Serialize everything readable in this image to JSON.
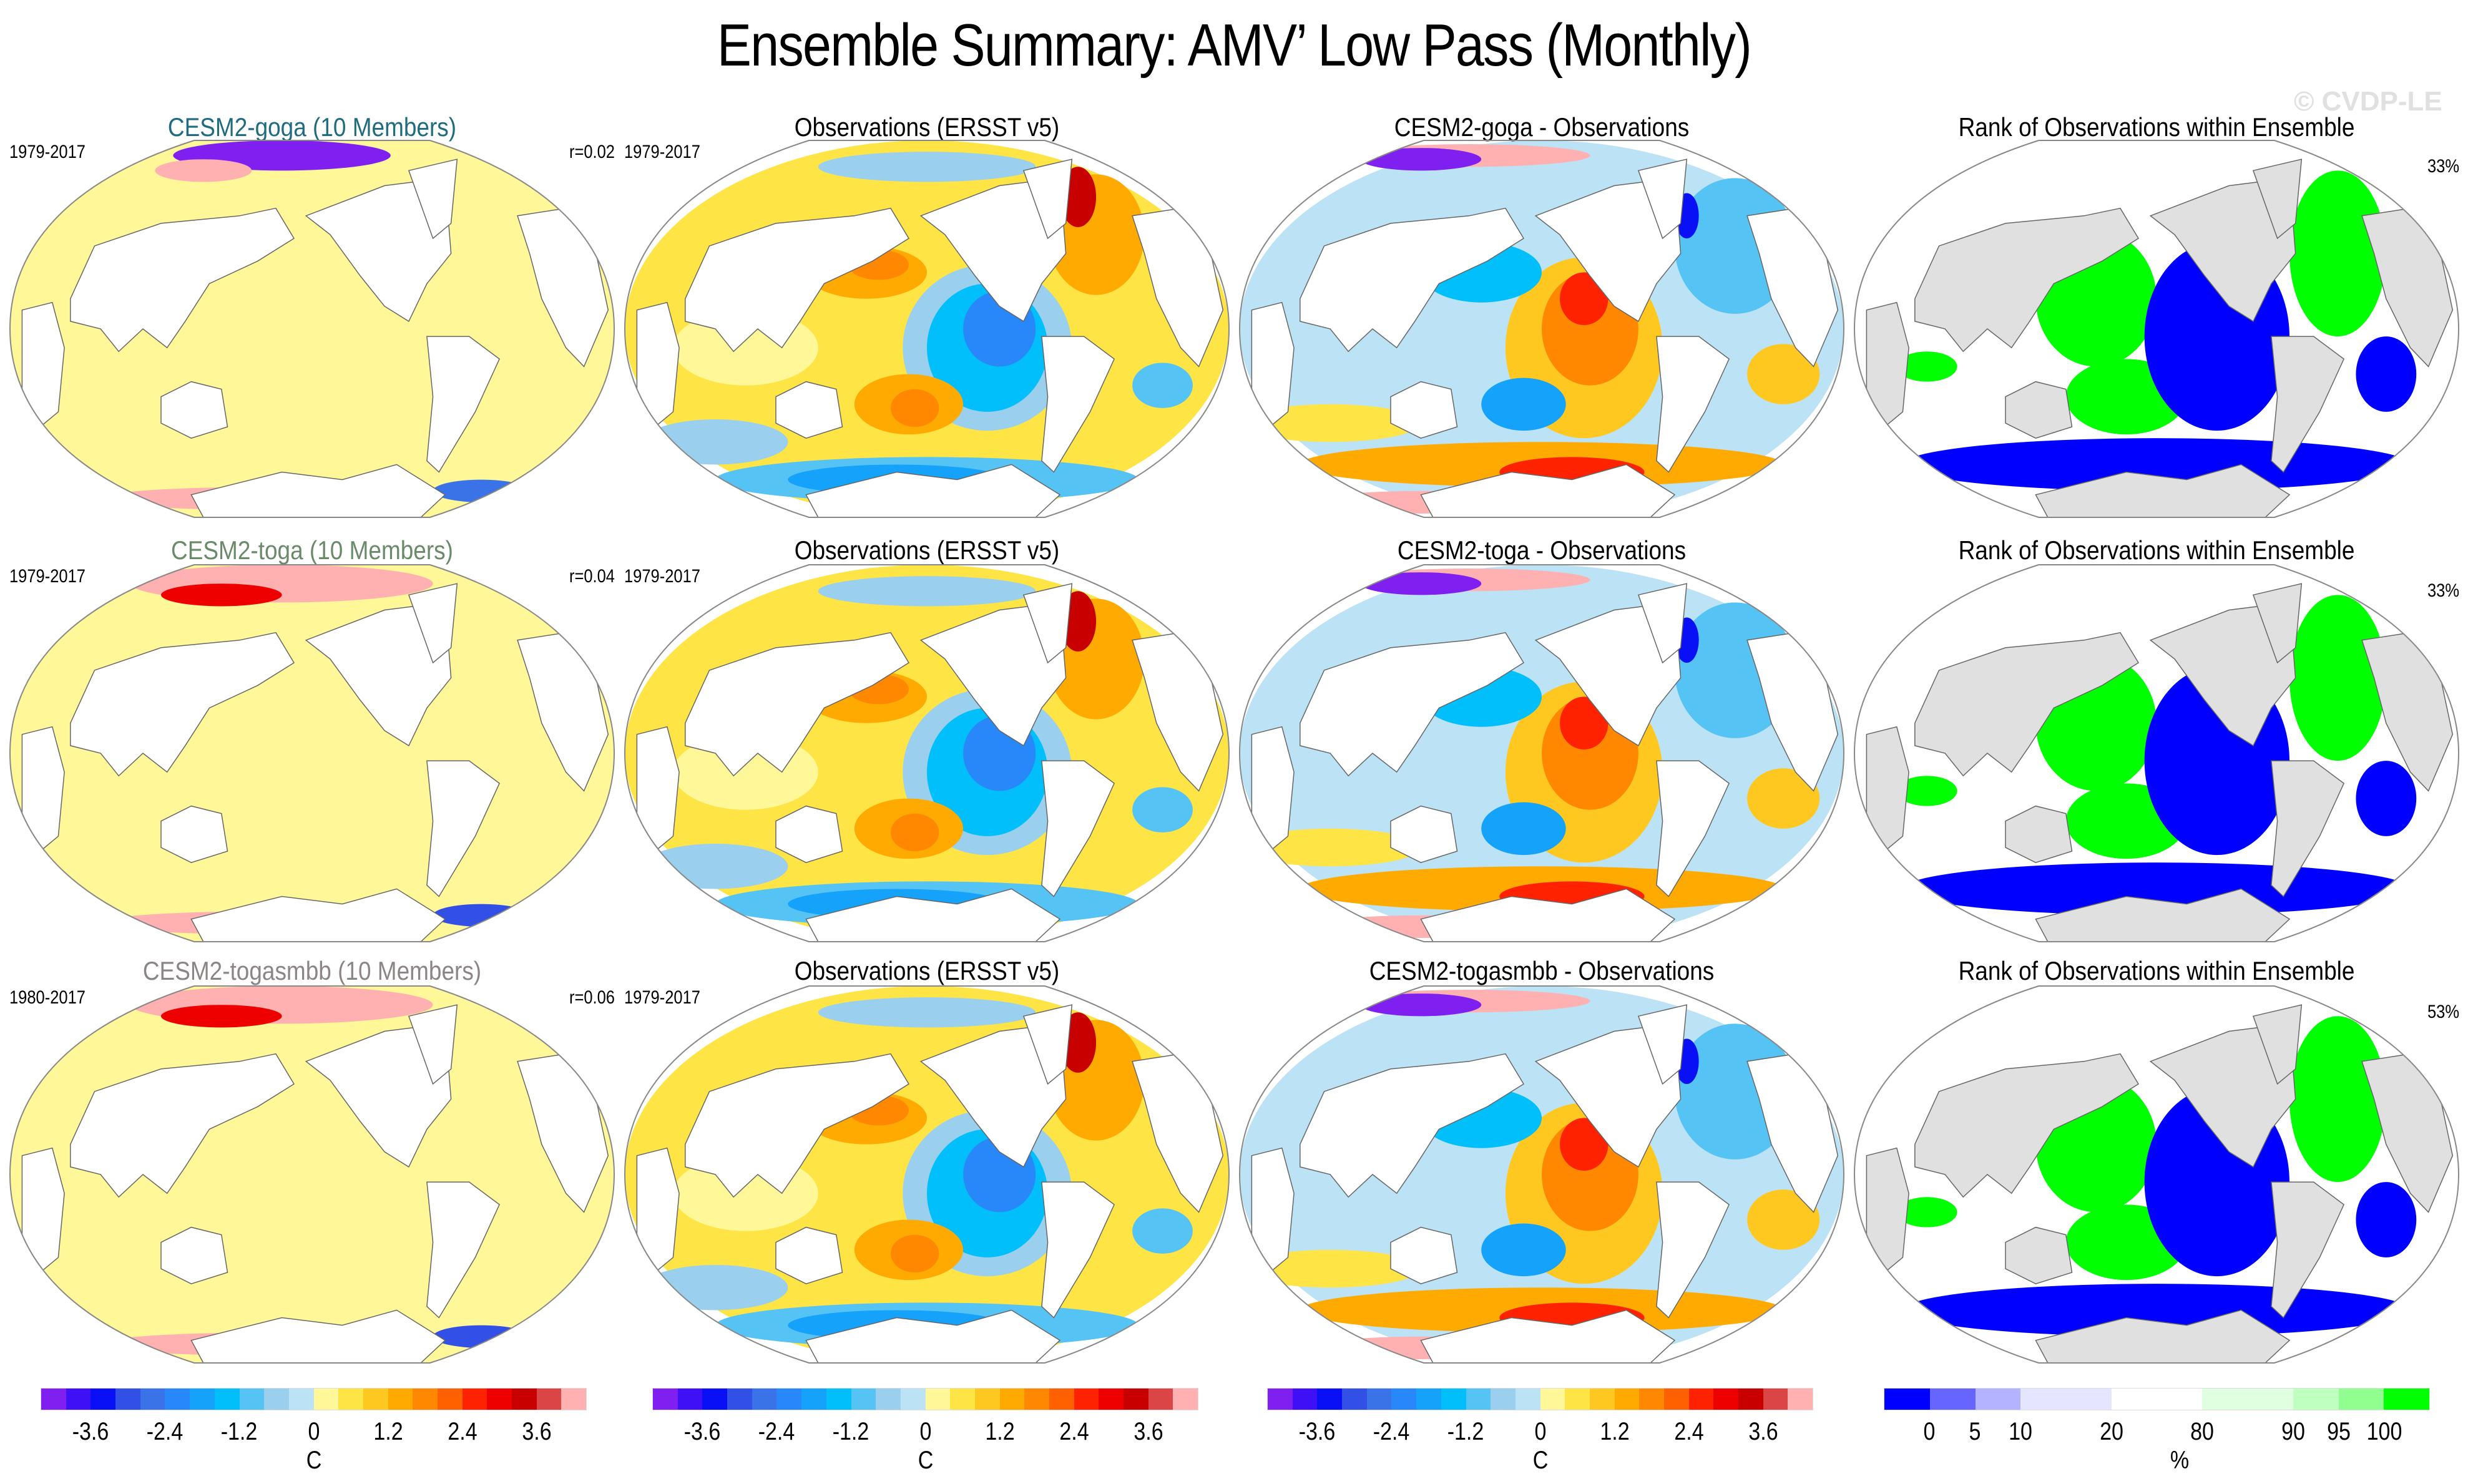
{
  "title": "Ensemble Summary: AMV’ Low Pass (Monthly)",
  "watermark": "© CVDP-LE",
  "chart_data": {
    "type": "heatmap",
    "projection": "Robinson (global map, Pacific-centered)",
    "grid": "3 rows x 4 columns of map panels",
    "rows": [
      {
        "panels": [
          {
            "kind": "model",
            "title": "CESM2-goga (10 Members)",
            "title_color": "#1f6b80",
            "years": "1979-2017",
            "stat": "r=0.02",
            "pattern": "near-zero (pale yellow) over most oceans; strong mixed anomalies in Arctic and Southern Ocean sea-ice zones"
          },
          {
            "kind": "observations",
            "title": "Observations (ERSST v5)",
            "years": "1979-2017",
            "pattern": "positive North Atlantic (up to ~3.6 C near Greenland), positive NW & SW Pacific horseshoe, negative eastern tropical Pacific and Southern Ocean"
          },
          {
            "kind": "difference",
            "title": "CESM2-goga - Observations",
            "pattern": "inverse of observations: positive eastern Pacific wedge, negative NW/SW Pacific and North Atlantic; mixed high-latitude"
          },
          {
            "kind": "rank",
            "title": "Rank of Observations within Ensemble",
            "stat": "33%",
            "pattern": "0-5% rank (blue) in eastern Pacific and Southern Ocean; 95-100% rank (green) in NW/SW Pacific and North Atlantic"
          }
        ]
      },
      {
        "panels": [
          {
            "kind": "model",
            "title": "CESM2-toga (10 Members)",
            "title_color": "#6a8a6a",
            "years": "1979-2017",
            "stat": "r=0.04",
            "pattern": "near-zero over most oceans; strong positive Arctic anomalies; mixed Southern Ocean"
          },
          {
            "kind": "observations",
            "title": "Observations (ERSST v5)",
            "years": "1979-2017",
            "pattern": "same observed AMV pattern"
          },
          {
            "kind": "difference",
            "title": "CESM2-toga - Observations",
            "pattern": "inverse of observations with positive Arctic"
          },
          {
            "kind": "rank",
            "title": "Rank of Observations within Ensemble",
            "stat": "33%",
            "pattern": "blue eastern Pacific and Southern Ocean; green NW/SW Pacific, Indian Ocean and North Atlantic"
          }
        ]
      },
      {
        "panels": [
          {
            "kind": "model",
            "title": "CESM2-togasmbb (10 Members)",
            "title_color": "#8c8585",
            "years": "1980-2017",
            "stat": "r=0.06",
            "pattern": "near-zero over most oceans; strong positive Arctic, mixed Southern Ocean"
          },
          {
            "kind": "observations",
            "title": "Observations (ERSST v5)",
            "years": "1979-2017",
            "pattern": "same observed AMV pattern"
          },
          {
            "kind": "difference",
            "title": "CESM2-togasmbb - Observations",
            "pattern": "inverse of observations with positive Arctic"
          },
          {
            "kind": "rank",
            "title": "Rank of Observations within Ensemble",
            "stat": "53%",
            "pattern": "blue eastern Pacific and Southern Ocean; green NW/SW Pacific and North Atlantic"
          }
        ]
      }
    ],
    "colorbars": [
      {
        "for": "columns 1-3 (SST anomaly)",
        "units": "C",
        "tick_labels": [
          "-3.6",
          "-2.4",
          "-1.2",
          "0",
          "1.2",
          "2.4",
          "3.6"
        ],
        "tick_values": [
          -3.6,
          -2.4,
          -1.2,
          0,
          1.2,
          2.4,
          3.6
        ],
        "levels": [
          -4.0,
          -3.6,
          -3.2,
          -2.8,
          -2.4,
          -2.0,
          -1.6,
          -1.2,
          -0.8,
          -0.4,
          0,
          0.4,
          0.8,
          1.2,
          1.6,
          2.0,
          2.4,
          2.8,
          3.2,
          3.6,
          4.0
        ],
        "colors": [
          "#8020f0",
          "#3f10f5",
          "#0a10f5",
          "#3250e5",
          "#3a72e8",
          "#2888fa",
          "#14a2fa",
          "#00bffa",
          "#56c3f5",
          "#9ad0ee",
          "#bce2f5",
          "#fff798",
          "#ffe445",
          "#ffc820",
          "#ffaa00",
          "#ff8800",
          "#ff6000",
          "#ff2200",
          "#ee0000",
          "#c80000",
          "#dc4545",
          "#ffb0b0"
        ]
      },
      {
        "for": "column 4 (rank)",
        "units": "%",
        "tick_labels": [
          "0",
          "5",
          "10",
          "20",
          "80",
          "90",
          "95",
          "100"
        ],
        "tick_values": [
          0,
          5,
          10,
          20,
          80,
          90,
          95,
          100
        ],
        "colors": [
          "#0000ff",
          "#6666ff",
          "#b3b3ff",
          "#e5e5ff",
          "#ffffff",
          "#e0ffe0",
          "#bfffbf",
          "#90ff90",
          "#00ff00"
        ],
        "box_widths": [
          1,
          1,
          1,
          2,
          2,
          2,
          1,
          1,
          1
        ]
      }
    ],
    "land_color_rank": "#e0e0e0",
    "land_color_sst": "#ffffff"
  }
}
